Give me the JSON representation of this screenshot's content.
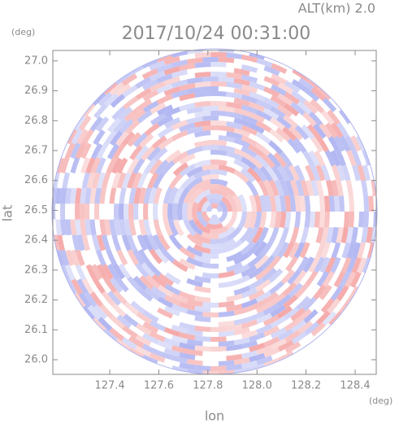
{
  "chart_data": {
    "type": "radar",
    "title": "2017/10/24 00:31:00",
    "subtitle": "ALT(km) 2.0",
    "x_label": "lon",
    "y_label": "lat",
    "x_unit": "(deg)",
    "y_unit": "(deg)",
    "xlim": [
      127.168,
      128.486
    ],
    "ylim": [
      25.951,
      27.035
    ],
    "xticks": [
      127.4,
      127.6,
      127.8,
      {
        "value": 128,
        "label": "128.0"
      },
      128.2,
      128.4
    ],
    "yticks": [
      {
        "value": 26,
        "label": "26.0"
      },
      26.1,
      26.2,
      26.3,
      26.4,
      26.5,
      26.6,
      26.7,
      26.8,
      26.9,
      {
        "value": 27,
        "label": "27.0"
      }
    ],
    "colors": [
      "#f4a0a0",
      "#a8aef0"
    ]
  }
}
